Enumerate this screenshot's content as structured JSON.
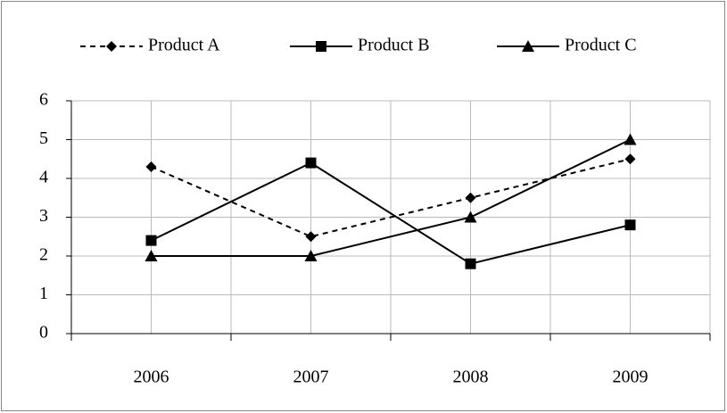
{
  "chart_data": {
    "type": "line",
    "categories": [
      "2006",
      "2007",
      "2008",
      "2009"
    ],
    "series": [
      {
        "name": "Product A",
        "color": "#000000",
        "dash": true,
        "marker": "diamond",
        "values": [
          4.3,
          2.5,
          3.5,
          4.5
        ]
      },
      {
        "name": "Product B",
        "color": "#000000",
        "dash": false,
        "marker": "square",
        "values": [
          2.4,
          4.4,
          1.8,
          2.8
        ]
      },
      {
        "name": "Product C",
        "color": "#000000",
        "dash": false,
        "marker": "triangle",
        "values": [
          2,
          2,
          3,
          5
        ]
      }
    ],
    "ylim": [
      0,
      6
    ],
    "yticks": [
      0,
      1,
      2,
      3,
      4,
      5,
      6
    ],
    "grid": true,
    "legend": "top"
  }
}
